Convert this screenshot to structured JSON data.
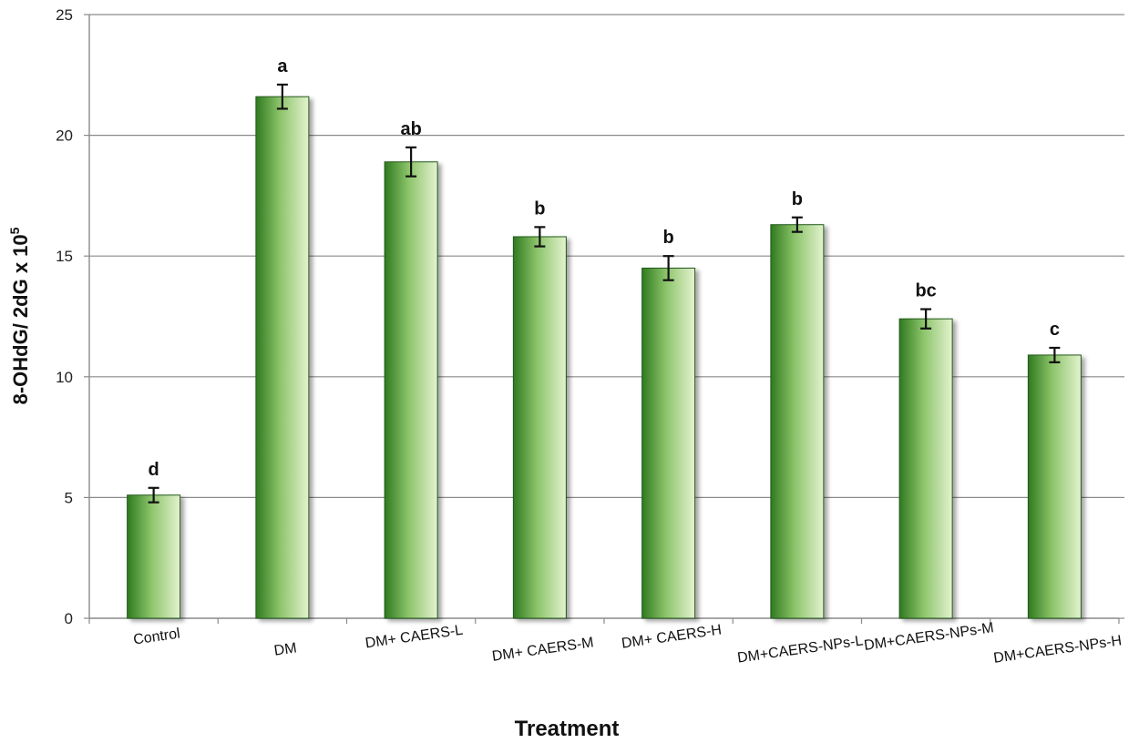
{
  "chart_data": {
    "type": "bar",
    "title": "",
    "xlabel": "Treatment",
    "ylabel": "8-OHdG/ 2dG x 10",
    "ylabel_superscript": "5",
    "ylim": [
      0,
      25
    ],
    "yticks": [
      0,
      5,
      10,
      15,
      20,
      25
    ],
    "grid": true,
    "legend": "none",
    "colors": {
      "bar_dark": "#2f7a1f",
      "bar_light": "#e4f2cf",
      "grid": "#8a8a8a",
      "error_bar": "#111111"
    },
    "categories": [
      "Control",
      "DM",
      "DM+ CAERS-L",
      "DM+ CAERS-M",
      "DM+ CAERS-H",
      "DM+CAERS-NPs-L",
      "DM+CAERS-NPs-M",
      "DM+CAERS-NPs-H"
    ],
    "values": [
      5.1,
      21.6,
      18.9,
      15.8,
      14.5,
      16.3,
      12.4,
      10.9
    ],
    "errors": [
      0.3,
      0.5,
      0.6,
      0.4,
      0.5,
      0.3,
      0.4,
      0.3
    ],
    "significance": [
      "d",
      "a",
      "ab",
      "b",
      "b",
      "b",
      "bc",
      "c"
    ]
  }
}
